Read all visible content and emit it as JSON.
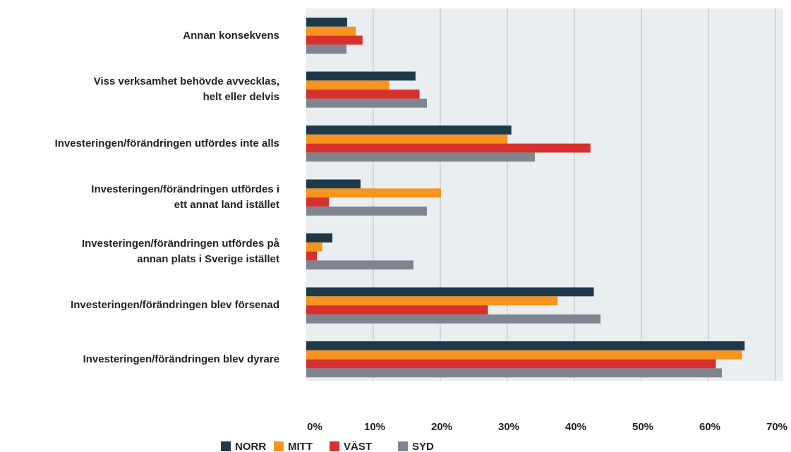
{
  "chart_data": {
    "type": "hbar",
    "categories": [
      "Annan konsekvens",
      "Viss verksamhet behövde avvecklas,\nhelt eller delvis",
      "Investeringen/förändringen utfördes inte alls",
      "Investeringen/förändringen utfördes i\nett annat land istället",
      "Investeringen/förändringen utfördes på\nannan plats i Sverige istället",
      "Investeringen/förändringen blev försenad",
      "Investeringen/förändringen blev dyrare"
    ],
    "series": [
      {
        "name": "NORR",
        "color": "#1e3a4a",
        "values": [
          6.1,
          16.3,
          30.6,
          8.1,
          3.9,
          42.9,
          65.4
        ]
      },
      {
        "name": "MITT",
        "color": "#f7931e",
        "values": [
          7.4,
          12.4,
          30.0,
          20.1,
          2.4,
          37.5,
          65.0
        ]
      },
      {
        "name": "VÄST",
        "color": "#d6302f",
        "values": [
          8.4,
          16.9,
          42.4,
          3.4,
          1.6,
          27.1,
          61.1
        ]
      },
      {
        "name": "SYD",
        "color": "#7f8590",
        "values": [
          6.0,
          18.0,
          34.1,
          18.0,
          16.0,
          43.9,
          62.0
        ]
      }
    ],
    "xlim": [
      0,
      70
    ],
    "xticks": [
      {
        "value": 0,
        "label": "0%"
      },
      {
        "value": 10,
        "label": "10%"
      },
      {
        "value": 20,
        "label": "20%"
      },
      {
        "value": 30,
        "label": "30%"
      },
      {
        "value": 40,
        "label": "40%"
      },
      {
        "value": 50,
        "label": "50%"
      },
      {
        "value": 60,
        "label": "60%"
      },
      {
        "value": 70,
        "label": "70%"
      }
    ],
    "grid": true,
    "legend": "bottom"
  }
}
